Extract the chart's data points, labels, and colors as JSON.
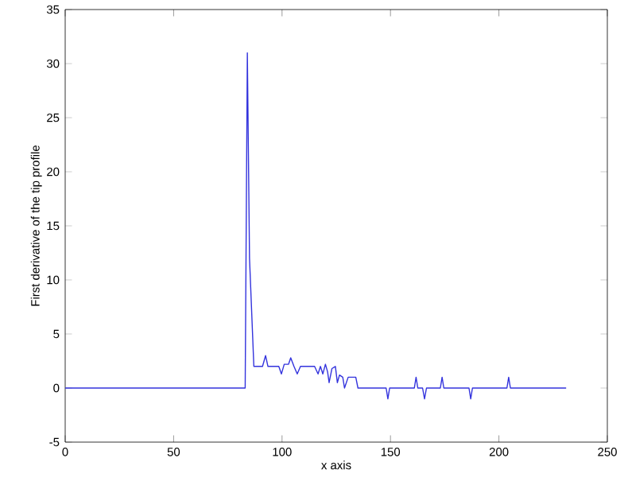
{
  "chart_data": {
    "type": "line",
    "xlabel": "x axis",
    "ylabel": "First derivative of the tip profile",
    "xlim": [
      0,
      250
    ],
    "xticks": [
      0,
      50,
      100,
      150,
      200,
      250
    ],
    "ylim": [
      -5,
      35
    ],
    "yticks": [
      -5,
      0,
      5,
      10,
      15,
      20,
      25,
      30,
      35
    ],
    "series": [
      {
        "color": "#3333dd",
        "x": [
          0,
          83,
          84,
          85,
          87,
          91,
          92.4,
          93.5,
          98.5,
          99.7,
          101,
          103,
          104,
          105.5,
          107,
          108.5,
          115,
          116.6,
          117.7,
          118.8,
          120,
          121,
          121.7,
          123,
          124.6,
          125.5,
          126.5,
          128,
          128.8,
          130.5,
          131.5,
          133,
          134,
          135,
          148,
          148.8,
          149.6,
          161,
          161.8,
          162.6,
          164.8,
          165.7,
          166.6,
          173,
          173.8,
          174.6,
          186.2,
          187,
          187.8,
          203.7,
          204.5,
          205.3,
          231
        ],
        "values": [
          0,
          0,
          31,
          12,
          2,
          2,
          3,
          2,
          2,
          1.3,
          2.2,
          2.2,
          2.8,
          2,
          1.3,
          2,
          2,
          1.3,
          2,
          1.3,
          2.2,
          1.5,
          0.5,
          1.8,
          2,
          0.5,
          1.2,
          1,
          0,
          1,
          1,
          1,
          1,
          0,
          0,
          -1,
          0,
          0,
          1,
          0,
          0,
          -1,
          0,
          0,
          1,
          0,
          0,
          -1,
          0,
          0,
          1,
          0,
          0
        ]
      }
    ]
  }
}
